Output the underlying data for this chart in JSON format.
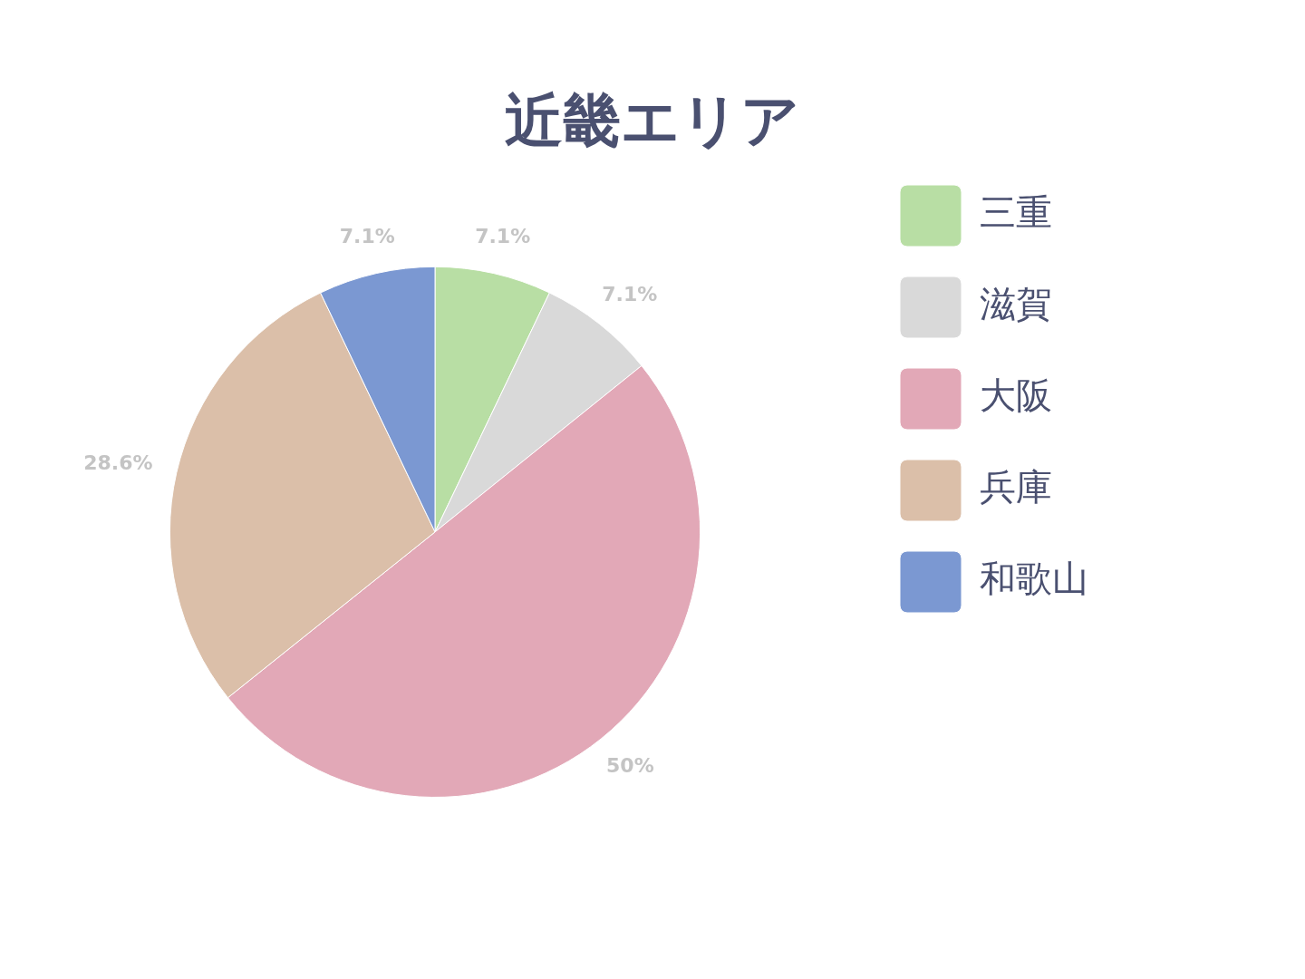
{
  "chart_data": {
    "type": "pie",
    "title": "近畿エリア",
    "categories": [
      "三重",
      "滋賀",
      "大阪",
      "兵庫",
      "和歌山"
    ],
    "values": [
      7.1,
      7.1,
      50,
      28.6,
      7.1
    ],
    "colors": [
      "#b8dea4",
      "#d9d9d9",
      "#e2a8b7",
      "#dbbfa9",
      "#7b98d2"
    ],
    "value_labels": [
      "7.1%",
      "7.1%",
      "50%",
      "28.6%",
      "7.1%"
    ],
    "legend": "right"
  }
}
